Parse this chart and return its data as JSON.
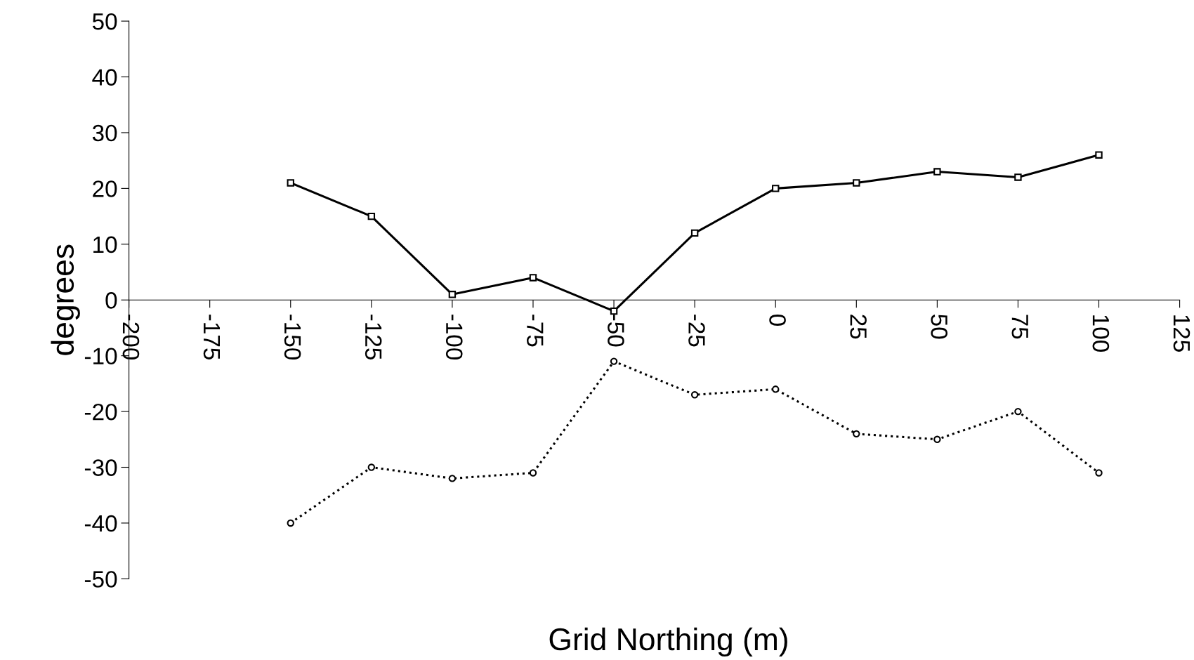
{
  "chart_data": {
    "type": "line",
    "xlabel": "Grid Northing (m)",
    "ylabel": "degrees",
    "x": [
      -150,
      -125,
      -100,
      -75,
      -50,
      -25,
      0,
      25,
      50,
      75,
      100
    ],
    "series": [
      {
        "color": "#000000",
        "marker": "square",
        "line_style": "solid",
        "values": [
          21,
          15,
          1,
          4,
          -2,
          12,
          20,
          21,
          23,
          22,
          26
        ]
      },
      {
        "color": "#000000",
        "marker": "circle",
        "line_style": "dotted",
        "values": [
          -40,
          -30,
          -32,
          -31,
          -11,
          -17,
          -16,
          -24,
          -25,
          -20,
          -31
        ]
      }
    ],
    "xlim": [
      -200,
      125
    ],
    "xticks": [
      -200,
      -175,
      -150,
      -125,
      -100,
      -75,
      -50,
      -25,
      0,
      25,
      50,
      75,
      100,
      125
    ],
    "ylim": [
      -50,
      50
    ],
    "yticks": [
      -50,
      -40,
      -30,
      -20,
      -10,
      0,
      10,
      20,
      30,
      40,
      50
    ],
    "grid": false
  }
}
